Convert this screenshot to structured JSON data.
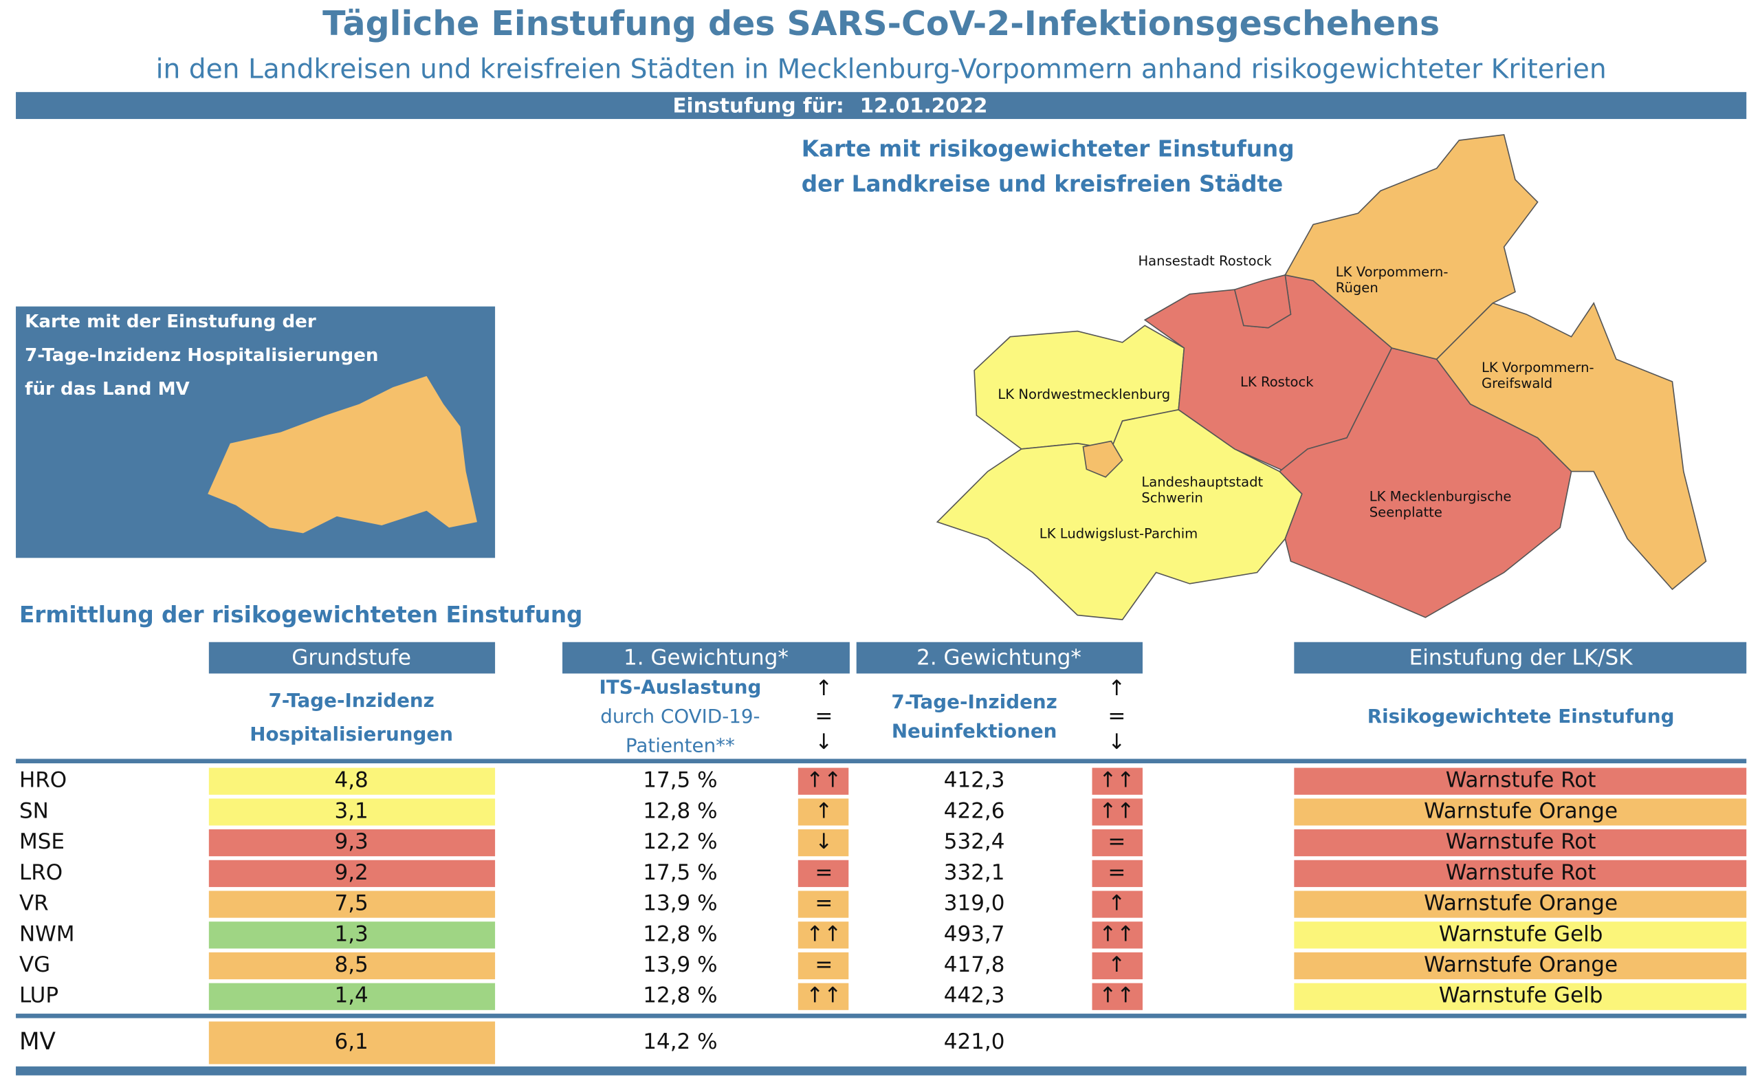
{
  "header": {
    "title": "Tägliche Einstufung des SARS-CoV-2-Infektionsgeschehens",
    "subtitle": "in den Landkreisen und kreisfreien Städten in Mecklenburg-Vorpommern anhand risikogewichteter Kriterien",
    "date_label": "Einstufung für:",
    "date": "12.01.2022"
  },
  "map": {
    "title": [
      "Karte mit risikogewichteter Einstufung",
      "der Landkreise und kreisfreien Städte"
    ],
    "labels": [
      [
        "Hansestadt Rostock"
      ],
      [
        "LK Vorpommern-",
        "Rügen"
      ],
      [
        "LK Rostock"
      ],
      [
        "LK Vorpommern-",
        "Greifswald"
      ],
      [
        "LK Nordwestmecklenburg"
      ],
      [
        "Landeshauptstadt",
        "Schwerin"
      ],
      [
        "LK Mecklenburgische",
        "Seenplatte"
      ],
      [
        "LK Ludwigslust-Parchim"
      ]
    ]
  },
  "state_box": {
    "lines": [
      "Karte mit der Einstufung der",
      "7-Tage-Inzidenz Hospitalisierungen",
      "für das Land MV"
    ]
  },
  "section_title": "Ermittlung der risikogewichteten Einstufung",
  "table": {
    "headers": [
      "Grundstufe",
      "1. Gewichtung*",
      "2. Gewichtung*",
      "Einstufung der LK/SK"
    ],
    "subheaders": {
      "hosp": [
        "7-Tage-Inzidenz",
        "Hospitalisierungen"
      ],
      "its": [
        "ITS-Auslastung",
        "durch COVID-19-",
        "Patienten**"
      ],
      "neu": [
        "7-Tage-Inzidenz",
        "Neuinfektionen"
      ],
      "trend": [
        "↑",
        "=",
        "↓"
      ],
      "stufe": "Risikogewichtete Einstufung"
    },
    "rows": [
      {
        "name": "HRO",
        "hosp": "4,8",
        "hosp_color": "#fbf57a",
        "its": "17,5 %",
        "its_trend": "↑↑",
        "its_color": "#e57a6e",
        "neu": "412,3",
        "neu_trend": "↑↑",
        "neu_color": "#e57a6e",
        "stufe": "Warnstufe Rot",
        "stufe_color": "#e57a6e"
      },
      {
        "name": "SN",
        "hosp": "3,1",
        "hosp_color": "#fbf57a",
        "its": "12,8 %",
        "its_trend": "↑",
        "its_color": "#f5c06b",
        "neu": "422,6",
        "neu_trend": "↑↑",
        "neu_color": "#e57a6e",
        "stufe": "Warnstufe Orange",
        "stufe_color": "#f5c06b"
      },
      {
        "name": "MSE",
        "hosp": "9,3",
        "hosp_color": "#e57a6e",
        "its": "12,2 %",
        "its_trend": "↓",
        "its_color": "#f5c06b",
        "neu": "532,4",
        "neu_trend": "=",
        "neu_color": "#e57a6e",
        "stufe": "Warnstufe Rot",
        "stufe_color": "#e57a6e"
      },
      {
        "name": "LRO",
        "hosp": "9,2",
        "hosp_color": "#e57a6e",
        "its": "17,5 %",
        "its_trend": "=",
        "its_color": "#e57a6e",
        "neu": "332,1",
        "neu_trend": "=",
        "neu_color": "#e57a6e",
        "stufe": "Warnstufe Rot",
        "stufe_color": "#e57a6e"
      },
      {
        "name": "VR",
        "hosp": "7,5",
        "hosp_color": "#f5c06b",
        "its": "13,9 %",
        "its_trend": "=",
        "its_color": "#f5c06b",
        "neu": "319,0",
        "neu_trend": "↑",
        "neu_color": "#e57a6e",
        "stufe": "Warnstufe Orange",
        "stufe_color": "#f5c06b"
      },
      {
        "name": "NWM",
        "hosp": "1,3",
        "hosp_color": "#9fd584",
        "its": "12,8 %",
        "its_trend": "↑↑",
        "its_color": "#f5c06b",
        "neu": "493,7",
        "neu_trend": "↑↑",
        "neu_color": "#e57a6e",
        "stufe": "Warnstufe Gelb",
        "stufe_color": "#fbf57a"
      },
      {
        "name": "VG",
        "hosp": "8,5",
        "hosp_color": "#f5c06b",
        "its": "13,9 %",
        "its_trend": "=",
        "its_color": "#f5c06b",
        "neu": "417,8",
        "neu_trend": "↑",
        "neu_color": "#e57a6e",
        "stufe": "Warnstufe Orange",
        "stufe_color": "#f5c06b"
      },
      {
        "name": "LUP",
        "hosp": "1,4",
        "hosp_color": "#9fd584",
        "its": "12,8 %",
        "its_trend": "↑↑",
        "its_color": "#f5c06b",
        "neu": "442,3",
        "neu_trend": "↑↑",
        "neu_color": "#e57a6e",
        "stufe": "Warnstufe Gelb",
        "stufe_color": "#fbf57a"
      }
    ],
    "total": {
      "name": "MV",
      "hosp": "6,1",
      "hosp_color": "#f5c06b",
      "its": "14,2 %",
      "neu": "421,0"
    }
  }
}
